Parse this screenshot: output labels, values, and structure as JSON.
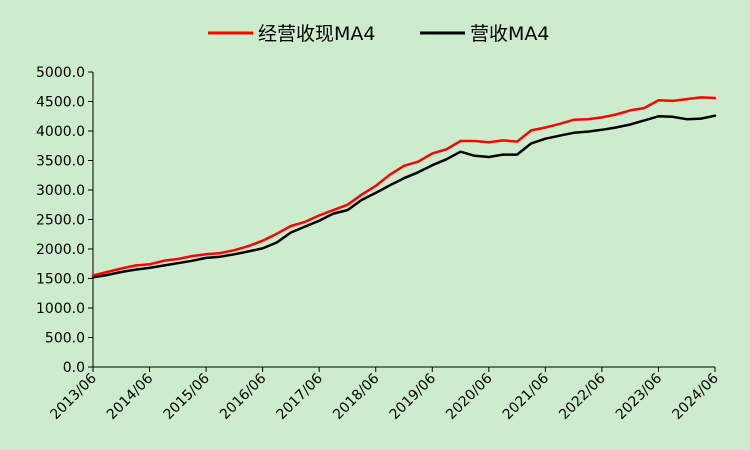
{
  "chart_data": {
    "type": "line",
    "x": [
      "2013/06",
      "2013/09",
      "2013/12",
      "2014/03",
      "2014/06",
      "2014/09",
      "2014/12",
      "2015/03",
      "2015/06",
      "2015/09",
      "2015/12",
      "2016/03",
      "2016/06",
      "2016/09",
      "2016/12",
      "2017/03",
      "2017/06",
      "2017/09",
      "2017/12",
      "2018/03",
      "2018/06",
      "2018/09",
      "2018/12",
      "2019/03",
      "2019/06",
      "2019/09",
      "2019/12",
      "2020/03",
      "2020/06",
      "2020/09",
      "2020/12",
      "2021/03",
      "2021/06",
      "2021/09",
      "2021/12",
      "2022/03",
      "2022/06",
      "2022/09",
      "2022/12",
      "2023/03",
      "2023/06",
      "2023/09",
      "2023/12",
      "2024/03",
      "2024/06"
    ],
    "x_tick_labels": [
      "2013/06",
      "2014/06",
      "2015/06",
      "2016/06",
      "2017/06",
      "2018/06",
      "2019/06",
      "2020/06",
      "2021/06",
      "2022/06",
      "2023/06",
      "2024/06"
    ],
    "y_tick_labels": [
      "0.0",
      "500.0",
      "1000.0",
      "1500.0",
      "2000.0",
      "2500.0",
      "3000.0",
      "3500.0",
      "4000.0",
      "4500.0",
      "5000.0"
    ],
    "ylim": [
      0,
      5000
    ],
    "grid": false,
    "legend_position": "top",
    "series": [
      {
        "name": "经营收现MA4",
        "color": "#ff0000",
        "values": [
          1550,
          1610,
          1670,
          1720,
          1740,
          1800,
          1830,
          1880,
          1910,
          1930,
          1980,
          2050,
          2140,
          2260,
          2390,
          2460,
          2570,
          2660,
          2750,
          2920,
          3070,
          3260,
          3410,
          3480,
          3620,
          3690,
          3830,
          3830,
          3810,
          3840,
          3820,
          4010,
          4060,
          4120,
          4190,
          4200,
          4230,
          4280,
          4350,
          4390,
          4520,
          4510,
          4540,
          4570,
          4560
        ]
      },
      {
        "name": "营收MA4",
        "color": "#000000",
        "values": [
          1520,
          1560,
          1610,
          1650,
          1680,
          1720,
          1760,
          1800,
          1850,
          1870,
          1910,
          1960,
          2010,
          2110,
          2280,
          2380,
          2480,
          2600,
          2660,
          2830,
          2950,
          3080,
          3200,
          3300,
          3420,
          3520,
          3650,
          3580,
          3560,
          3600,
          3600,
          3790,
          3870,
          3920,
          3970,
          3990,
          4020,
          4060,
          4110,
          4180,
          4250,
          4240,
          4200,
          4210,
          4260
        ]
      }
    ]
  }
}
